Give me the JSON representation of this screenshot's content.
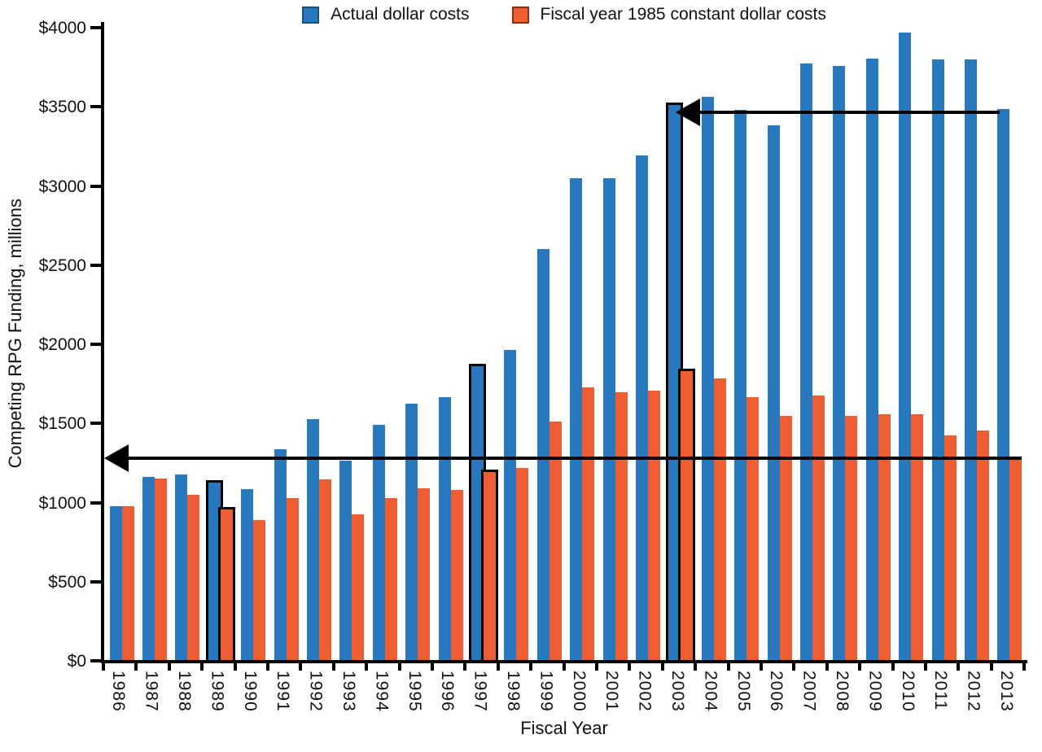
{
  "chart_data": {
    "type": "bar",
    "title": "",
    "xlabel": "Fiscal Year",
    "ylabel": "Competing RPG Funding, millions",
    "ylim": [
      0,
      4000
    ],
    "ytick_interval": 500,
    "ytick_labels": [
      "$0",
      "$500",
      "$1000",
      "$1500",
      "$2000",
      "$2500",
      "$3000",
      "$3500",
      "$4000"
    ],
    "grid": false,
    "legend_position": "top center",
    "categories": [
      "1986",
      "1987",
      "1988",
      "1989",
      "1990",
      "1991",
      "1992",
      "1993",
      "1994",
      "1995",
      "1996",
      "1997",
      "1998",
      "1999",
      "2000",
      "2001",
      "2002",
      "2003",
      "2004",
      "2005",
      "2006",
      "2007",
      "2008",
      "2009",
      "2010",
      "2011",
      "2012",
      "2013"
    ],
    "series": [
      {
        "name": "Actual dollar costs",
        "color": "#2878BE",
        "values": [
          975,
          1160,
          1175,
          1125,
          1085,
          1335,
          1525,
          1265,
          1490,
          1625,
          1665,
          1860,
          1965,
          2600,
          3050,
          3050,
          3195,
          3510,
          3565,
          3480,
          3385,
          3775,
          3760,
          3805,
          3970,
          3800,
          3800,
          3485
        ]
      },
      {
        "name": "Fiscal year 1985 constant dollar costs",
        "color": "#EF5E33",
        "values": [
          975,
          1150,
          1050,
          955,
          890,
          1030,
          1145,
          925,
          1030,
          1090,
          1080,
          1195,
          1220,
          1510,
          1725,
          1695,
          1705,
          1830,
          1785,
          1665,
          1545,
          1675,
          1545,
          1560,
          1560,
          1425,
          1455,
          1275
        ]
      }
    ],
    "highlighted_categories": [
      "1989",
      "1997",
      "2003"
    ],
    "annotations": [
      {
        "name": "actual-dollar-level-arrow",
        "at_value": 3465,
        "from_category": "2013",
        "to_category": "2003",
        "direction": "left",
        "description": "Horizontal arrow at the 2013 actual-dollar bar top pointing left to the 2003 bar"
      },
      {
        "name": "constant-dollar-level-arrow",
        "at_value": 1280,
        "from_category": "2013",
        "to_category": "y-axis",
        "direction": "left",
        "description": "Horizontal arrow at the 2013 constant-dollar bar top pointing left to the y-axis"
      }
    ],
    "legend": [
      {
        "label": "Actual dollar costs",
        "color": "#2878BE",
        "edge_color": "#1C4E75"
      },
      {
        "label": "Fiscal year 1985 constant dollar costs",
        "color": "#EF5E33",
        "edge_color": "#8C3011"
      }
    ],
    "colors": {
      "actual": "#2878BE",
      "constant": "#EF5E33",
      "axis": "#000000",
      "highlight_outline": "#000000"
    }
  }
}
